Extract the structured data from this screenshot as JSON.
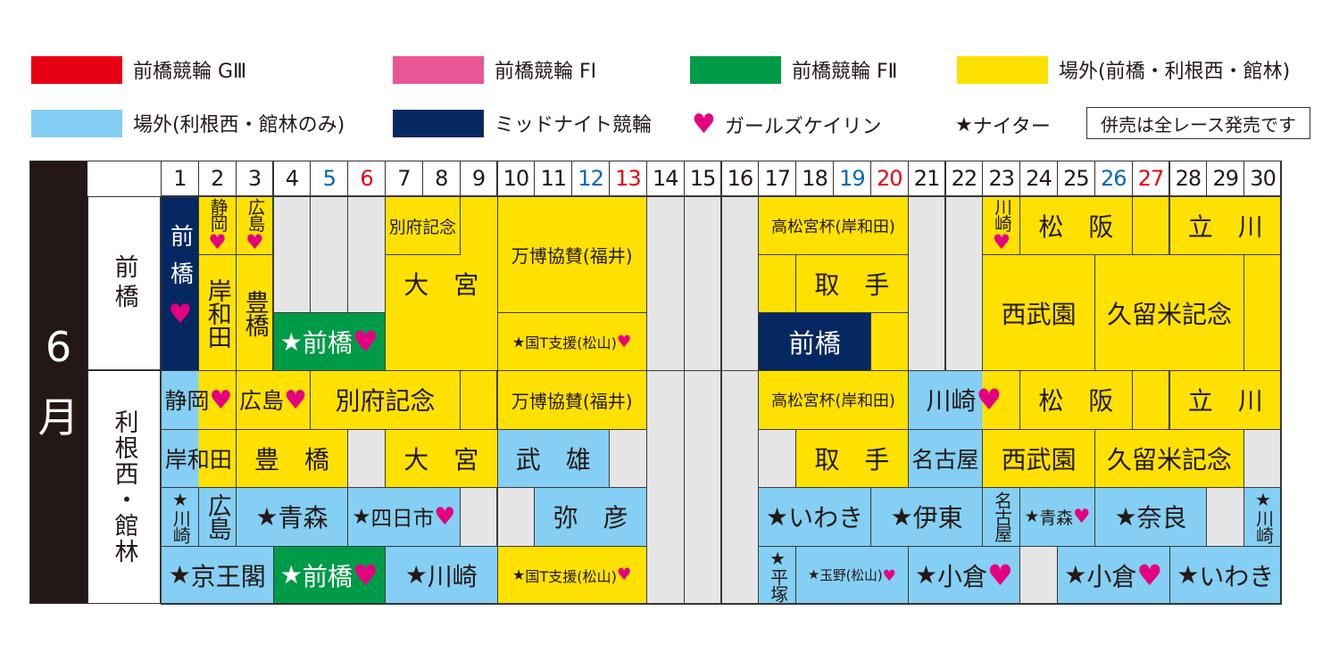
{
  "colors": {
    "g3": "#E60012",
    "f1": "#EA5596",
    "f2": "#009B48",
    "offsite_all": "#FFE100",
    "offsite_tone": "#84CFF3",
    "midnight": "#052863",
    "none": "#E5E5E7",
    "heart": "#E4007F",
    "saturday": "#0068B7",
    "sunday": "#E60012"
  },
  "legend": {
    "items": [
      {
        "type": "g3",
        "label": "前橋競輪 GⅢ"
      },
      {
        "type": "f1",
        "label": "前橋競輪 FⅠ"
      },
      {
        "type": "f2",
        "label": "前橋競輪 FⅡ"
      },
      {
        "type": "offsite_all",
        "label": "場外(前橋・利根西・館林)"
      },
      {
        "type": "offsite_tone",
        "label": "場外(利根西・館林のみ)"
      },
      {
        "type": "midnight",
        "label": "ミッドナイト競輪"
      }
    ],
    "girls": {
      "icon": "heart-icon",
      "label": "ガールズケイリン"
    },
    "nighter": {
      "icon": "star-icon",
      "label": "ナイター"
    },
    "note": "併売は全レース発売です"
  },
  "month": [
    "6",
    "月"
  ],
  "sections": [
    "前橋",
    "利根西・館林"
  ],
  "days": [
    {
      "d": "1"
    },
    {
      "d": "2"
    },
    {
      "d": "3"
    },
    {
      "d": "4"
    },
    {
      "d": "5",
      "dow": "sat"
    },
    {
      "d": "6",
      "dow": "sun"
    },
    {
      "d": "7"
    },
    {
      "d": "8"
    },
    {
      "d": "9"
    },
    {
      "d": "10"
    },
    {
      "d": "11"
    },
    {
      "d": "12",
      "dow": "sat"
    },
    {
      "d": "13",
      "dow": "sun"
    },
    {
      "d": "14"
    },
    {
      "d": "15"
    },
    {
      "d": "16"
    },
    {
      "d": "17"
    },
    {
      "d": "18"
    },
    {
      "d": "19",
      "dow": "sat"
    },
    {
      "d": "20",
      "dow": "sun"
    },
    {
      "d": "21"
    },
    {
      "d": "22"
    },
    {
      "d": "23"
    },
    {
      "d": "24"
    },
    {
      "d": "25"
    },
    {
      "d": "26",
      "dow": "sat"
    },
    {
      "d": "27",
      "dow": "sun"
    },
    {
      "d": "28"
    },
    {
      "d": "29"
    },
    {
      "d": "30"
    }
  ],
  "schedule": [
    {
      "section": 0,
      "days": [
        1,
        1
      ],
      "lanes": [
        0,
        2
      ],
      "type": "midnight",
      "label": "前橋",
      "heart": true,
      "vertical": true
    },
    {
      "section": 0,
      "days": [
        2,
        2
      ],
      "lanes": [
        0,
        0
      ],
      "type": "offsite_all",
      "label": "静岡",
      "heart": true,
      "vertical": true
    },
    {
      "section": 0,
      "days": [
        2,
        2
      ],
      "lanes": [
        1,
        2
      ],
      "type": "offsite_all",
      "label": "岸和田",
      "vertical": true
    },
    {
      "section": 0,
      "days": [
        3,
        3
      ],
      "lanes": [
        0,
        0
      ],
      "type": "offsite_all",
      "label": "広島",
      "heart": true,
      "vertical": true
    },
    {
      "section": 0,
      "days": [
        3,
        3
      ],
      "lanes": [
        1,
        2
      ],
      "type": "offsite_all",
      "label": "豊橋",
      "vertical": true
    },
    {
      "section": 0,
      "days": [
        4,
        4
      ],
      "lanes": [
        0,
        1
      ],
      "type": "none"
    },
    {
      "section": 0,
      "days": [
        5,
        5
      ],
      "lanes": [
        0,
        1
      ],
      "type": "none"
    },
    {
      "section": 0,
      "days": [
        6,
        6
      ],
      "lanes": [
        0,
        1
      ],
      "type": "none"
    },
    {
      "section": 0,
      "days": [
        4,
        6
      ],
      "lanes": [
        2,
        2
      ],
      "type": "f2",
      "label": "前橋",
      "star": true,
      "heart": true
    },
    {
      "section": 0,
      "days": [
        7,
        9
      ],
      "lanes": [
        0,
        2
      ],
      "type": "offsite_all",
      "label": "大　宮"
    },
    {
      "section": 0,
      "days": [
        7,
        8
      ],
      "lanes": [
        0,
        0
      ],
      "type": "offsite_all",
      "label": "別府記念"
    },
    {
      "section": 0,
      "days": [
        10,
        13
      ],
      "lanes": [
        0,
        1
      ],
      "type": "offsite_all",
      "label": "万博協賛(福井)"
    },
    {
      "section": 0,
      "days": [
        10,
        13
      ],
      "lanes": [
        2,
        2
      ],
      "type": "offsite_all",
      "label": "国T支援(松山)",
      "star": true,
      "heart": true
    },
    {
      "section": 0,
      "days": [
        14,
        14
      ],
      "lanes": [
        0,
        2
      ],
      "type": "none"
    },
    {
      "section": 0,
      "days": [
        15,
        15
      ],
      "lanes": [
        0,
        2
      ],
      "type": "none"
    },
    {
      "section": 0,
      "days": [
        16,
        16
      ],
      "lanes": [
        0,
        2
      ],
      "type": "none"
    },
    {
      "section": 0,
      "days": [
        17,
        20
      ],
      "lanes": [
        0,
        0
      ],
      "type": "offsite_all",
      "label": "高松宮杯(岸和田)"
    },
    {
      "section": 0,
      "days": [
        17,
        17
      ],
      "lanes": [
        1,
        1
      ],
      "type": "offsite_all"
    },
    {
      "section": 0,
      "days": [
        18,
        20
      ],
      "lanes": [
        1,
        1
      ],
      "type": "offsite_all",
      "label": "取　手"
    },
    {
      "section": 0,
      "days": [
        20,
        20
      ],
      "lanes": [
        2,
        2
      ],
      "type": "offsite_all"
    },
    {
      "section": 0,
      "days": [
        17,
        19
      ],
      "lanes": [
        2,
        2
      ],
      "type": "midnight",
      "label": "前橋"
    },
    {
      "section": 0,
      "days": [
        21,
        21
      ],
      "lanes": [
        0,
        2
      ],
      "type": "none"
    },
    {
      "section": 0,
      "days": [
        22,
        22
      ],
      "lanes": [
        0,
        2
      ],
      "type": "none"
    },
    {
      "section": 0,
      "days": [
        23,
        23
      ],
      "lanes": [
        0,
        0
      ],
      "type": "offsite_all",
      "label": "川崎",
      "heart": true,
      "vertical": true
    },
    {
      "section": 0,
      "days": [
        24,
        26
      ],
      "lanes": [
        0,
        0
      ],
      "type": "offsite_all",
      "label": "松　阪"
    },
    {
      "section": 0,
      "days": [
        27,
        27
      ],
      "lanes": [
        0,
        0
      ],
      "type": "offsite_all"
    },
    {
      "section": 0,
      "days": [
        28,
        30
      ],
      "lanes": [
        0,
        0
      ],
      "type": "offsite_all",
      "label": "立　川"
    },
    {
      "section": 0,
      "days": [
        23,
        25
      ],
      "lanes": [
        1,
        2
      ],
      "type": "offsite_all",
      "label": "西武園"
    },
    {
      "section": 0,
      "days": [
        26,
        29
      ],
      "lanes": [
        1,
        2
      ],
      "type": "offsite_all",
      "label": "久留米記念"
    },
    {
      "section": 0,
      "days": [
        30,
        30
      ],
      "lanes": [
        1,
        2
      ],
      "type": "offsite_all"
    },
    {
      "section": 1,
      "days": [
        1,
        2
      ],
      "lanes": [
        0,
        0
      ],
      "type": "offsite_all",
      "offsite_tone_until": 1,
      "label": "静岡",
      "heart": true
    },
    {
      "section": 1,
      "days": [
        3,
        4
      ],
      "lanes": [
        0,
        0
      ],
      "type": "offsite_all",
      "label": "広島",
      "heart": true
    },
    {
      "section": 1,
      "days": [
        5,
        8
      ],
      "lanes": [
        0,
        0
      ],
      "type": "offsite_all",
      "label": "別府記念"
    },
    {
      "section": 1,
      "days": [
        9,
        9
      ],
      "lanes": [
        0,
        0
      ],
      "type": "offsite_all"
    },
    {
      "section": 1,
      "days": [
        10,
        13
      ],
      "lanes": [
        0,
        0
      ],
      "type": "offsite_all",
      "label": "万博協賛(福井)"
    },
    {
      "section": 1,
      "days": [
        14,
        14
      ],
      "lanes": [
        0,
        3
      ],
      "type": "none"
    },
    {
      "section": 1,
      "days": [
        15,
        15
      ],
      "lanes": [
        0,
        3
      ],
      "type": "none"
    },
    {
      "section": 1,
      "days": [
        16,
        16
      ],
      "lanes": [
        0,
        3
      ],
      "type": "none"
    },
    {
      "section": 1,
      "days": [
        17,
        20
      ],
      "lanes": [
        0,
        0
      ],
      "type": "offsite_all",
      "label": "高松宮杯(岸和田)"
    },
    {
      "section": 1,
      "days": [
        21,
        23
      ],
      "lanes": [
        0,
        0
      ],
      "type": "offsite_all",
      "offsite_tone_until": 22,
      "label": "川崎",
      "heart": true
    },
    {
      "section": 1,
      "days": [
        24,
        26
      ],
      "lanes": [
        0,
        0
      ],
      "type": "offsite_all",
      "label": "松　阪"
    },
    {
      "section": 1,
      "days": [
        27,
        27
      ],
      "lanes": [
        0,
        0
      ],
      "type": "offsite_all"
    },
    {
      "section": 1,
      "days": [
        28,
        30
      ],
      "lanes": [
        0,
        0
      ],
      "type": "offsite_all",
      "label": "立　川"
    },
    {
      "section": 1,
      "days": [
        1,
        2
      ],
      "lanes": [
        1,
        1
      ],
      "type": "offsite_all",
      "offsite_tone_until": 1,
      "label": "岸和田"
    },
    {
      "section": 1,
      "days": [
        3,
        5
      ],
      "lanes": [
        1,
        1
      ],
      "type": "offsite_all",
      "label": "豊　橋"
    },
    {
      "section": 1,
      "days": [
        6,
        6
      ],
      "lanes": [
        1,
        1
      ],
      "type": "none"
    },
    {
      "section": 1,
      "days": [
        7,
        9
      ],
      "lanes": [
        1,
        1
      ],
      "type": "offsite_all",
      "label": "大　宮"
    },
    {
      "section": 1,
      "days": [
        10,
        12
      ],
      "lanes": [
        1,
        1
      ],
      "type": "offsite_tone",
      "label": "武　雄"
    },
    {
      "section": 1,
      "days": [
        13,
        13
      ],
      "lanes": [
        1,
        1
      ],
      "type": "none"
    },
    {
      "section": 1,
      "days": [
        17,
        17
      ],
      "lanes": [
        1,
        1
      ],
      "type": "none"
    },
    {
      "section": 1,
      "days": [
        18,
        20
      ],
      "lanes": [
        1,
        1
      ],
      "type": "offsite_all",
      "label": "取　手"
    },
    {
      "section": 1,
      "days": [
        21,
        22
      ],
      "lanes": [
        1,
        1
      ],
      "type": "offsite_tone",
      "label": "名古屋"
    },
    {
      "section": 1,
      "days": [
        23,
        25
      ],
      "lanes": [
        1,
        1
      ],
      "type": "offsite_all",
      "label": "西武園"
    },
    {
      "section": 1,
      "days": [
        26,
        29
      ],
      "lanes": [
        1,
        1
      ],
      "type": "offsite_all",
      "label": "久留米記念"
    },
    {
      "section": 1,
      "days": [
        30,
        30
      ],
      "lanes": [
        1,
        1
      ],
      "type": "none"
    },
    {
      "section": 1,
      "days": [
        1,
        1
      ],
      "lanes": [
        2,
        2
      ],
      "type": "offsite_tone",
      "label": "川崎",
      "star": true,
      "vertical": true
    },
    {
      "section": 1,
      "days": [
        2,
        2
      ],
      "lanes": [
        2,
        2
      ],
      "type": "offsite_tone",
      "label": "広島",
      "vertical": true
    },
    {
      "section": 1,
      "days": [
        3,
        5
      ],
      "lanes": [
        2,
        2
      ],
      "type": "offsite_tone",
      "label": "青森",
      "star": true
    },
    {
      "section": 1,
      "days": [
        6,
        8
      ],
      "lanes": [
        2,
        2
      ],
      "type": "offsite_tone",
      "label": "四日市",
      "star": true,
      "heart": true
    },
    {
      "section": 1,
      "days": [
        9,
        9
      ],
      "lanes": [
        2,
        2
      ],
      "type": "none"
    },
    {
      "section": 1,
      "days": [
        10,
        10
      ],
      "lanes": [
        2,
        2
      ],
      "type": "none"
    },
    {
      "section": 1,
      "days": [
        11,
        13
      ],
      "lanes": [
        2,
        2
      ],
      "type": "offsite_tone",
      "label": "弥　彦"
    },
    {
      "section": 1,
      "days": [
        17,
        19
      ],
      "lanes": [
        2,
        2
      ],
      "type": "offsite_tone",
      "label": "いわき",
      "star": true
    },
    {
      "section": 1,
      "days": [
        20,
        22
      ],
      "lanes": [
        2,
        2
      ],
      "type": "offsite_tone",
      "label": "伊東",
      "star": true
    },
    {
      "section": 1,
      "days": [
        23,
        23
      ],
      "lanes": [
        2,
        2
      ],
      "type": "offsite_tone",
      "label": "名古屋",
      "vertical": true
    },
    {
      "section": 1,
      "days": [
        24,
        25
      ],
      "lanes": [
        2,
        2
      ],
      "type": "offsite_tone",
      "label": "青森",
      "star": true,
      "heart": true
    },
    {
      "section": 1,
      "days": [
        26,
        28
      ],
      "lanes": [
        2,
        2
      ],
      "type": "offsite_tone",
      "label": "奈良",
      "star": true
    },
    {
      "section": 1,
      "days": [
        29,
        29
      ],
      "lanes": [
        2,
        2
      ],
      "type": "none"
    },
    {
      "section": 1,
      "days": [
        30,
        30
      ],
      "lanes": [
        2,
        2
      ],
      "type": "offsite_tone",
      "label": "川崎",
      "star": true,
      "vertical": true
    },
    {
      "section": 1,
      "days": [
        1,
        3
      ],
      "lanes": [
        3,
        3
      ],
      "type": "offsite_tone",
      "label": "京王閣",
      "star": true
    },
    {
      "section": 1,
      "days": [
        4,
        6
      ],
      "lanes": [
        3,
        3
      ],
      "type": "f2",
      "label": "前橋",
      "star": true,
      "heart": true
    },
    {
      "section": 1,
      "days": [
        7,
        9
      ],
      "lanes": [
        3,
        3
      ],
      "type": "offsite_tone",
      "label": "川崎",
      "star": true
    },
    {
      "section": 1,
      "days": [
        10,
        13
      ],
      "lanes": [
        3,
        3
      ],
      "type": "offsite_all",
      "label": "国T支援(松山)",
      "star": true,
      "heart": true
    },
    {
      "section": 1,
      "days": [
        17,
        17
      ],
      "lanes": [
        3,
        3
      ],
      "type": "offsite_tone",
      "label": "平塚",
      "star": true,
      "vertical": true
    },
    {
      "section": 1,
      "days": [
        18,
        20
      ],
      "lanes": [
        3,
        3
      ],
      "type": "offsite_tone",
      "label": "玉野(松山)",
      "star": true,
      "heart": true
    },
    {
      "section": 1,
      "days": [
        21,
        23
      ],
      "lanes": [
        3,
        3
      ],
      "type": "offsite_tone",
      "label": "小倉",
      "star": true,
      "heart": true
    },
    {
      "section": 1,
      "days": [
        24,
        24
      ],
      "lanes": [
        3,
        3
      ],
      "type": "none"
    },
    {
      "section": 1,
      "days": [
        25,
        27
      ],
      "lanes": [
        3,
        3
      ],
      "type": "offsite_tone",
      "label": "小倉",
      "star": true,
      "heart": true
    },
    {
      "section": 1,
      "days": [
        28,
        30
      ],
      "lanes": [
        3,
        3
      ],
      "type": "offsite_tone",
      "label": "いわき",
      "star": true
    }
  ]
}
